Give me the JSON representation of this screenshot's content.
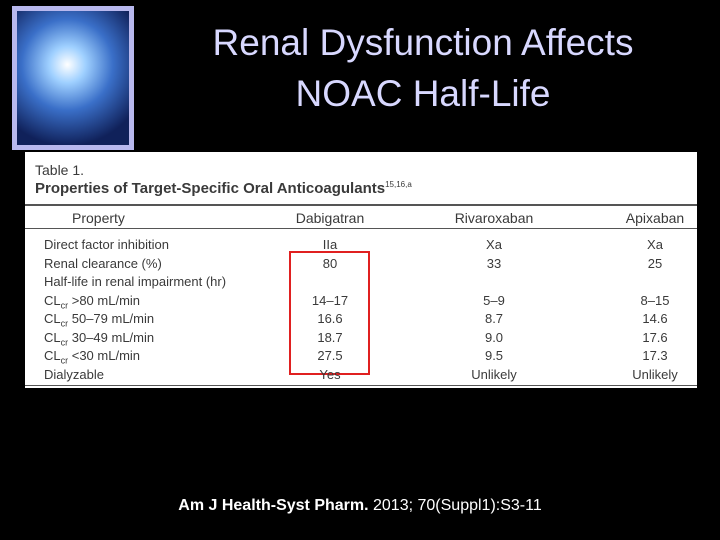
{
  "header": {
    "title_lines": [
      "Renal Dysfunction Affects",
      "NOAC Half-Life"
    ]
  },
  "table": {
    "label": "Table 1.",
    "caption": "Properties of Target-Specific Oral Anticoagulants",
    "caption_sup": "15,16,a",
    "columns": [
      "Property",
      "Dabigatran",
      "Rivaroxaban",
      "Apixaban"
    ],
    "rows": [
      [
        {
          "text": "Direct factor inhibition"
        },
        "IIa",
        "Xa",
        "Xa"
      ],
      [
        {
          "text": "Renal clearance (%)"
        },
        "80",
        "33",
        "25"
      ],
      [
        {
          "text": "Half-life in renal impairment (hr)"
        },
        null,
        null,
        null
      ],
      [
        {
          "base": "CL",
          "sub": "cr",
          "rest": " >80 mL/min"
        },
        "14–17",
        "5–9",
        "8–15"
      ],
      [
        {
          "base": "CL",
          "sub": "cr",
          "rest": " 50–79 mL/min"
        },
        "16.6",
        "8.7",
        "14.6"
      ],
      [
        {
          "base": "CL",
          "sub": "cr",
          "rest": " 30–49 mL/min"
        },
        "18.7",
        "9.0",
        "17.6"
      ],
      [
        {
          "base": "CL",
          "sub": "cr",
          "rest": " <30 mL/min"
        },
        "27.5",
        "9.5",
        "17.3"
      ],
      [
        {
          "text": "Dialyzable"
        },
        "Yes",
        "Unlikely",
        "Unlikely"
      ]
    ]
  },
  "citation": {
    "journal": "Am J Health-Syst Pharm.",
    "details": " 2013; 70(Suppl1):S3-11"
  }
}
